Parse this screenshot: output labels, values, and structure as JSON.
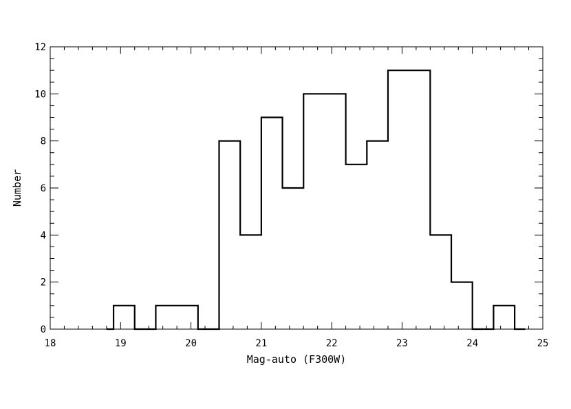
{
  "chart_data": {
    "type": "histogram",
    "title": "",
    "xlabel": "Mag-auto (F300W)",
    "ylabel": "Number",
    "xlim": [
      18,
      25
    ],
    "ylim": [
      0,
      12
    ],
    "x_ticks": [
      "18",
      "19",
      "20",
      "21",
      "22",
      "23",
      "24",
      "25"
    ],
    "y_ticks": [
      "0",
      "2",
      "4",
      "6",
      "8",
      "10",
      "12"
    ],
    "bin_width": 0.3,
    "bin_edges": [
      18.8,
      18.9,
      19.2,
      19.5,
      19.8,
      20.1,
      20.4,
      20.7,
      21.0,
      21.3,
      21.6,
      21.9,
      22.2,
      22.5,
      22.8,
      23.1,
      23.4,
      23.7,
      24.0,
      24.3,
      24.6,
      24.75
    ],
    "counts": [
      0,
      1,
      0,
      1,
      1,
      0,
      8,
      4,
      9,
      6,
      10,
      10,
      7,
      8,
      11,
      11,
      4,
      2,
      0,
      1,
      0
    ],
    "grid": false,
    "style": "step"
  }
}
